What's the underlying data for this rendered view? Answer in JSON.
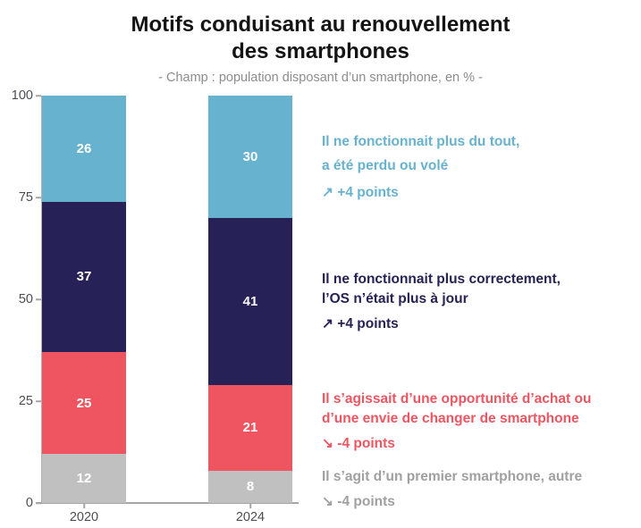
{
  "header": {
    "title_line1": "Motifs conduisant au renouvellement",
    "title_line2": "des smartphones",
    "subtitle": "- Champ : population disposant d’un smartphone, en % -"
  },
  "colors": {
    "light_blue": "#66b2cf",
    "navy": "#262257",
    "red": "#ef5560",
    "gray_bar": "#c0c0c0",
    "gray_text": "#a0a0a0",
    "axis": "#a6a6a6",
    "tick_label": "#4c4c52",
    "value_label": "#ffffff"
  },
  "chart_data": {
    "type": "bar",
    "stacked": true,
    "categories": [
      "2020",
      "2024"
    ],
    "series": [
      {
        "name": "Il s’agit d’un premier smartphone, autre",
        "color": "#c0c0c0",
        "values": [
          12,
          8
        ]
      },
      {
        "name": "Il s’agissait d’une opportunité d’achat ou d’une envie de changer de smartphone",
        "color": "#ef5560",
        "values": [
          25,
          21
        ]
      },
      {
        "name": "Il ne fonctionnait plus correctement, l’OS n’était plus à jour",
        "color": "#262257",
        "values": [
          37,
          41
        ]
      },
      {
        "name": "Il ne fonctionnait plus du tout, a été perdu ou volé",
        "color": "#66b2cf",
        "values": [
          26,
          30
        ]
      }
    ],
    "yticks": [
      0,
      25,
      50,
      75,
      100
    ],
    "ylim": [
      0,
      100
    ],
    "grid": false,
    "legend_position": "right-annotations"
  },
  "annotations": [
    {
      "lines": [
        "Il ne fonctionnait plus du tout,",
        "a été perdu ou volé"
      ],
      "trend": "↗ +4 points",
      "color": "#66b2cf"
    },
    {
      "lines": [
        "Il ne fonctionnait plus correctement,",
        "l’OS n’était plus à jour"
      ],
      "trend": "↗ +4 points",
      "color": "#262257"
    },
    {
      "lines": [
        "Il s’agissait d’une opportunité d’achat ou",
        "d’une envie de changer de smartphone"
      ],
      "trend": "↘ -4 points",
      "color": "#ef5560"
    },
    {
      "lines": [
        "Il s’agit d’un premier smartphone, autre"
      ],
      "trend": "↘ -4 points",
      "color": "#a0a0a0"
    }
  ]
}
